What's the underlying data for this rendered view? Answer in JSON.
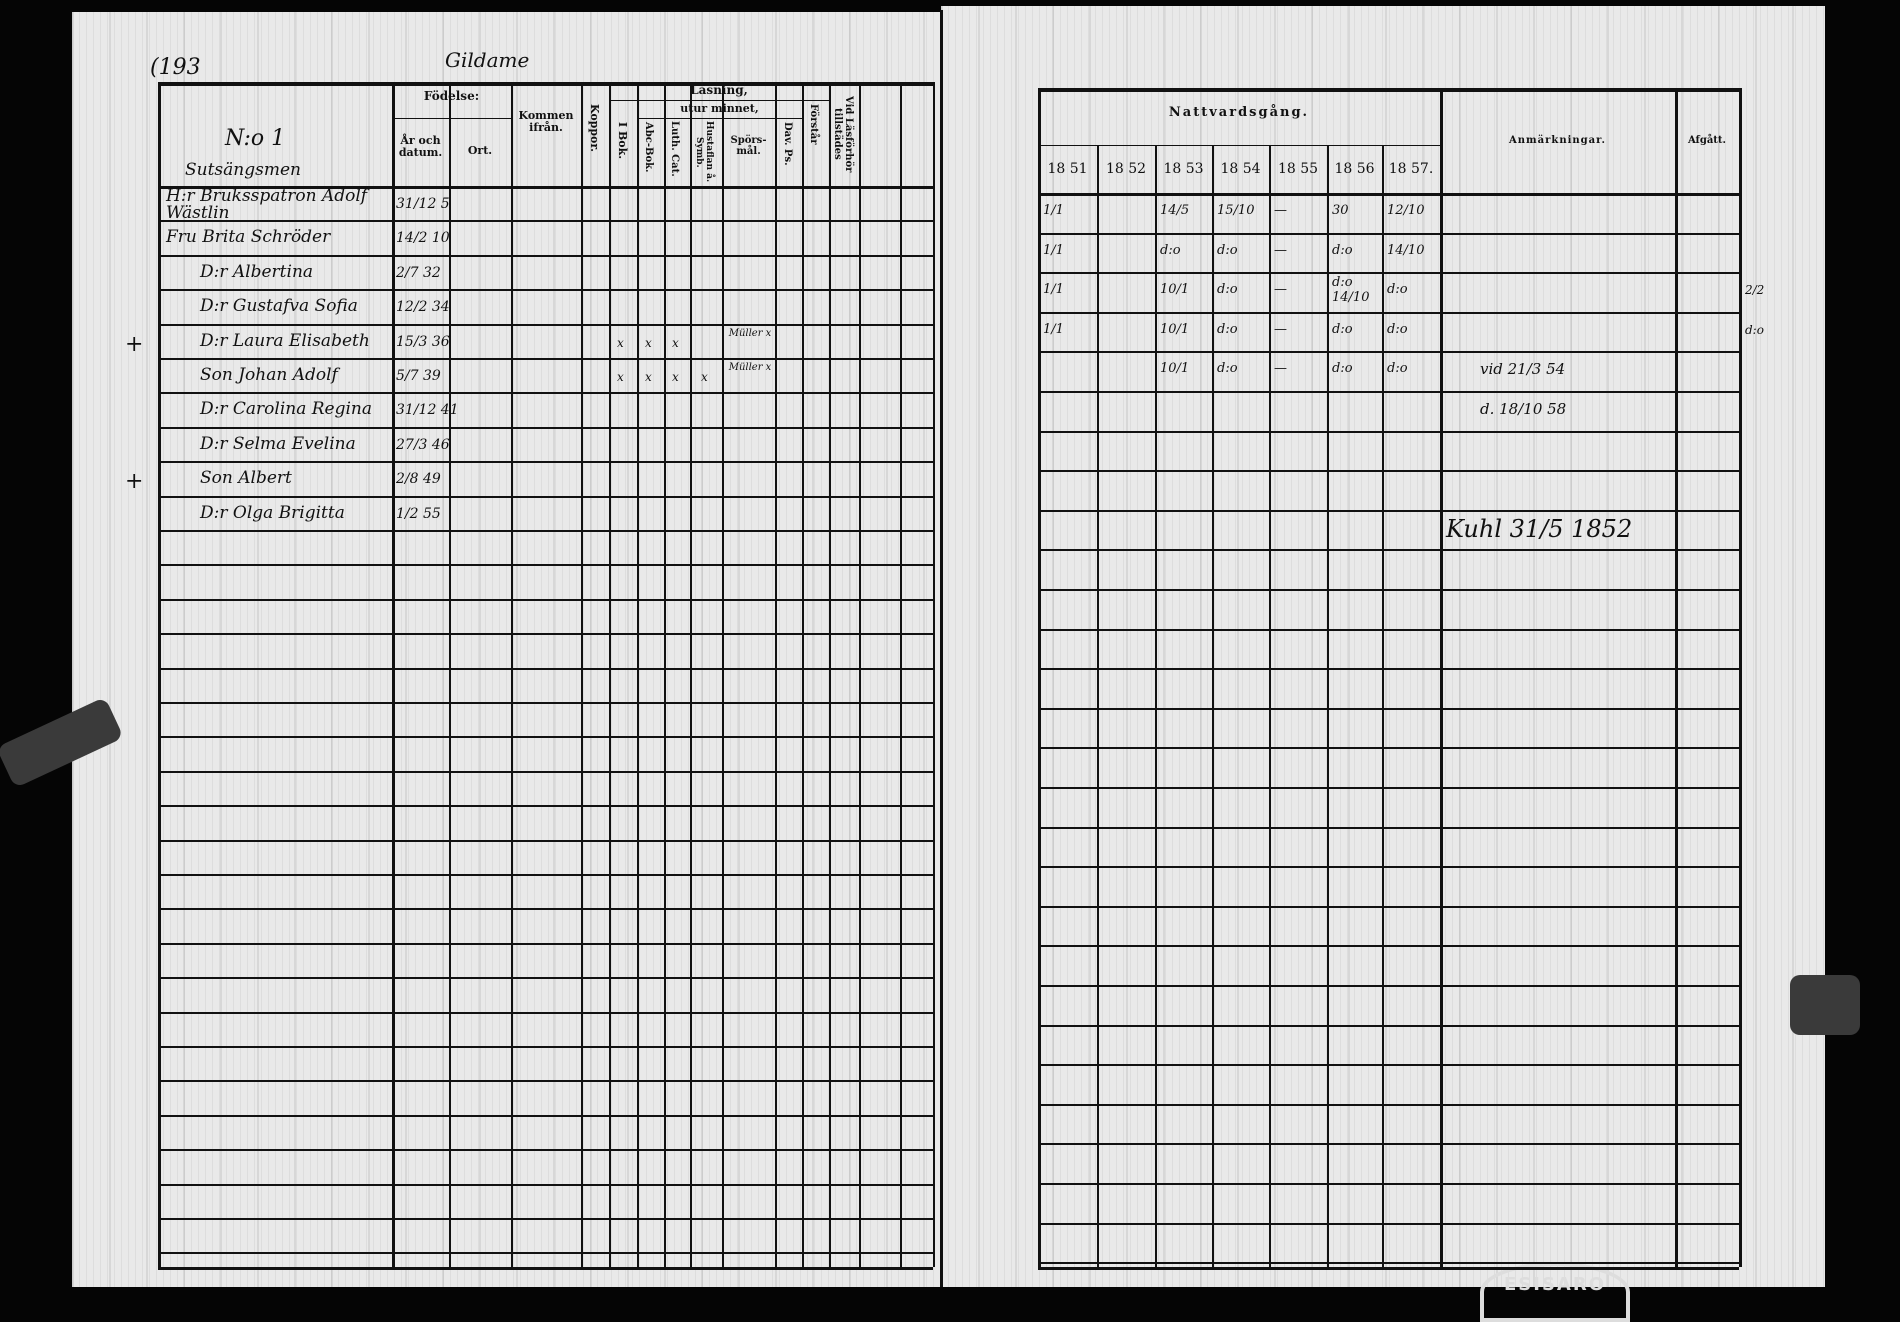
{
  "left_page": {
    "page_number": "(193",
    "parish": "Gildame",
    "household_label": "N:o 1",
    "place_label": "Sutsängsmen",
    "headers": {
      "fodelse": "Födelse:",
      "ar_och_datum": "År och datum.",
      "ort": "Ort.",
      "kommen_fran": "Kommen ifrån.",
      "koppor": "Koppor.",
      "lasning": "Läsning,",
      "i_bok": "I Bok.",
      "utur_minnet": "utur minnet,",
      "abc_bok": "Abc-Bok.",
      "luth_cat": "Luth. Cat.",
      "hustaflan": "Hustaflan å. Symb.",
      "sporsmal": "Spörs-mål.",
      "dav_ps": "Dav. Ps.",
      "forstar": "Förstår",
      "vid_lasforhor": "Vid Läsförhör tillstädes"
    },
    "persons": [
      {
        "name": "H:r Bruksspatron Adolf Wästlin",
        "birth": "31/12 5",
        "margin": "",
        "i_bok": "",
        "abc": "",
        "luth": "",
        "hust": "",
        "spors": ""
      },
      {
        "name": "Fru Brita Schröder",
        "birth": "14/2 10",
        "margin": "",
        "i_bok": "",
        "abc": "",
        "luth": "",
        "hust": "",
        "spors": ""
      },
      {
        "name": "D:r Albertina",
        "birth": "2/7 32",
        "margin": "",
        "i_bok": "",
        "abc": "",
        "luth": "",
        "hust": "",
        "spors": ""
      },
      {
        "name": "D:r Gustafva Sofia",
        "birth": "12/2 34",
        "margin": "",
        "i_bok": "",
        "abc": "",
        "luth": "",
        "hust": "",
        "spors": ""
      },
      {
        "name": "D:r Laura Elisabeth",
        "birth": "15/3 36",
        "margin": "+",
        "i_bok": "x",
        "abc": "x",
        "luth": "x",
        "hust": "",
        "spors": "Müller x"
      },
      {
        "name": "Son Johan Adolf",
        "birth": "5/7 39",
        "margin": "",
        "i_bok": "x",
        "abc": "x",
        "luth": "x",
        "hust": "x",
        "spors": "Müller x"
      },
      {
        "name": "D:r Carolina Regina",
        "birth": "31/12 41",
        "margin": "",
        "i_bok": "",
        "abc": "",
        "luth": "",
        "hust": "",
        "spors": ""
      },
      {
        "name": "D:r Selma Evelina",
        "birth": "27/3 46",
        "margin": "",
        "i_bok": "",
        "abc": "",
        "luth": "",
        "hust": "",
        "spors": ""
      },
      {
        "name": "Son Albert",
        "birth": "2/8 49",
        "margin": "+",
        "i_bok": "",
        "abc": "",
        "luth": "",
        "hust": "",
        "spors": ""
      },
      {
        "name": "D:r Olga Brigitta",
        "birth": "1/2 55",
        "margin": "",
        "i_bok": "",
        "abc": "",
        "luth": "",
        "hust": "",
        "spors": ""
      }
    ]
  },
  "right_page": {
    "headers": {
      "nattvardsgang": "Nattvardsgång.",
      "years": [
        "18 51",
        "18 52",
        "18 53",
        "18 54",
        "18 55",
        "18 56",
        "18 57."
      ],
      "anmarkningar": "Anmärkningar.",
      "afgatt": "Afgått."
    },
    "rows": [
      {
        "years": [
          "1/1",
          "",
          "14/5",
          "15/10",
          "—",
          "30",
          "12/10"
        ],
        "note": "",
        "afgatt": ""
      },
      {
        "years": [
          "1/1",
          "",
          "d:o",
          "d:o",
          "—",
          "d:o",
          "14/10"
        ],
        "note": "",
        "afgatt": ""
      },
      {
        "years": [
          "1/1",
          "",
          "10/1",
          "d:o",
          "—",
          "d:o 14/10",
          "d:o"
        ],
        "note": "",
        "afgatt": "2/2"
      },
      {
        "years": [
          "1/1",
          "",
          "10/1",
          "d:o",
          "—",
          "d:o",
          "d:o"
        ],
        "note": "",
        "afgatt": "d:o"
      },
      {
        "years": [
          "",
          "",
          "10/1",
          "d:o",
          "—",
          "d:o",
          "d:o"
        ],
        "note": "vid 21/3 54",
        "afgatt": ""
      },
      {
        "years": [
          "",
          "",
          "",
          "",
          "",
          "",
          ""
        ],
        "note": "d. 18/10 58",
        "afgatt": ""
      },
      {
        "years": [
          "",
          "",
          "",
          "",
          "",
          "",
          ""
        ],
        "note": "",
        "afgatt": ""
      },
      {
        "years": [
          "",
          "",
          "",
          "",
          "",
          "",
          ""
        ],
        "note": "",
        "afgatt": ""
      },
      {
        "years": [
          "",
          "",
          "",
          "",
          "",
          "",
          ""
        ],
        "note": "Kuhl 31/5 1852",
        "afgatt": ""
      },
      {
        "years": [
          "",
          "",
          "",
          "",
          "",
          "",
          ""
        ],
        "note": "",
        "afgatt": ""
      }
    ]
  },
  "stamp_text": "ESISARO"
}
